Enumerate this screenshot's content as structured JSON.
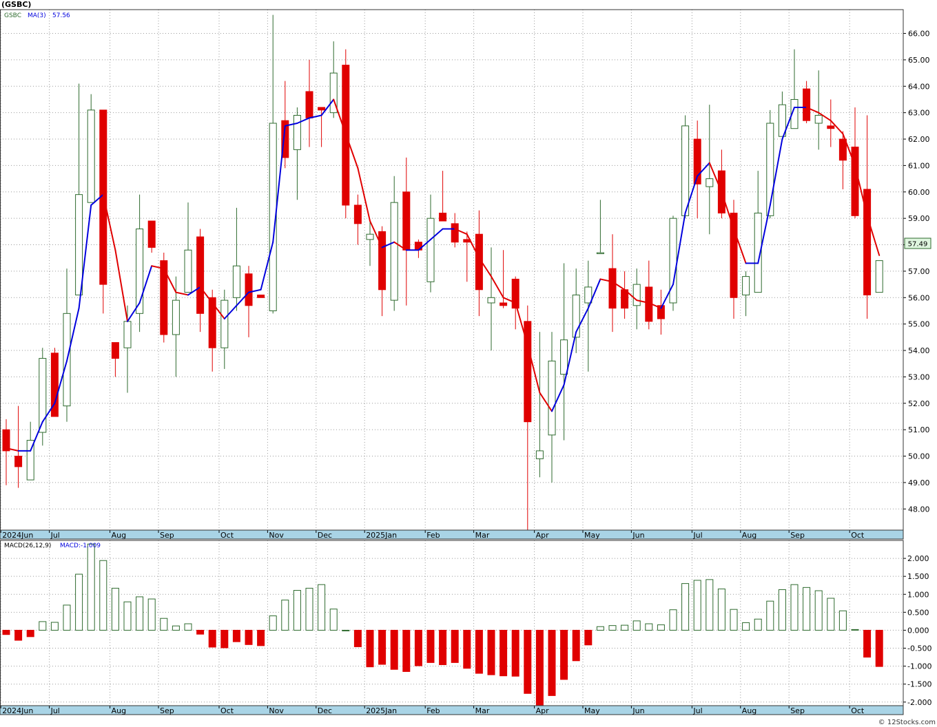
{
  "title": "(GSBC)",
  "credit": "© 12Stocks.com",
  "colors": {
    "up": "#2d6a2d",
    "down": "#e00000",
    "ma_up": "#0000dd",
    "ma_down": "#e00000",
    "grid": "#999999",
    "axis_band": "#a9d4e6",
    "label_box": "#dff5df"
  },
  "price_panel": {
    "legend": {
      "symbol": "GSBC",
      "ma_label": "MA(3)",
      "ma_value": "57.56"
    },
    "last_price": "57.49",
    "y_ticks": [
      "48.00",
      "49.00",
      "50.00",
      "51.00",
      "52.00",
      "53.00",
      "54.00",
      "55.00",
      "56.00",
      "57.00",
      "58.00",
      "59.00",
      "60.00",
      "61.00",
      "62.00",
      "63.00",
      "64.00",
      "65.00",
      "66.00"
    ]
  },
  "macd_panel": {
    "legend": {
      "label": "MACD(26,12,9)",
      "value_label": "MACD:-1.009"
    },
    "y_ticks": [
      "-2.000",
      "-1.500",
      "-1.000",
      "-0.500",
      "0.000",
      "0.500",
      "1.000",
      "1.500",
      "2.000"
    ]
  },
  "month_labels": [
    {
      "label": "2024Jun",
      "index": 0
    },
    {
      "label": "Jul",
      "index": 4
    },
    {
      "label": "Aug",
      "index": 9
    },
    {
      "label": "Sep",
      "index": 13
    },
    {
      "label": "Oct",
      "index": 18
    },
    {
      "label": "Nov",
      "index": 22
    },
    {
      "label": "Dec",
      "index": 26
    },
    {
      "label": "2025Jan",
      "index": 30
    },
    {
      "label": "Feb",
      "index": 35
    },
    {
      "label": "Mar",
      "index": 39
    },
    {
      "label": "Apr",
      "index": 44
    },
    {
      "label": "May",
      "index": 48
    },
    {
      "label": "Jun",
      "index": 52
    },
    {
      "label": "Jul",
      "index": 57
    },
    {
      "label": "Aug",
      "index": 61
    },
    {
      "label": "Sep",
      "index": 65
    },
    {
      "label": "Oct",
      "index": 70
    }
  ],
  "chart_data": {
    "type": "candlestick",
    "interval": "weekly",
    "y_range": [
      47.2,
      66.9
    ],
    "macd_range": [
      -2.1,
      2.5
    ],
    "candles": [
      {
        "o": 51.0,
        "h": 51.4,
        "l": 48.9,
        "c": 50.2
      },
      {
        "o": 50.0,
        "h": 51.9,
        "l": 48.8,
        "c": 49.6
      },
      {
        "o": 49.1,
        "h": 51.3,
        "l": 49.1,
        "c": 50.6
      },
      {
        "o": 50.9,
        "h": 54.1,
        "l": 50.4,
        "c": 53.7
      },
      {
        "o": 53.9,
        "h": 54.1,
        "l": 51.5,
        "c": 51.5
      },
      {
        "o": 51.9,
        "h": 57.1,
        "l": 51.3,
        "c": 55.4
      },
      {
        "o": 56.1,
        "h": 64.1,
        "l": 56.1,
        "c": 59.9
      },
      {
        "o": 59.6,
        "h": 63.7,
        "l": 59.6,
        "c": 63.1
      },
      {
        "o": 63.1,
        "h": 63.1,
        "l": 55.4,
        "c": 56.5
      },
      {
        "o": 54.3,
        "h": 54.3,
        "l": 53.0,
        "c": 53.7
      },
      {
        "o": 54.1,
        "h": 55.7,
        "l": 52.4,
        "c": 55.1
      },
      {
        "o": 55.4,
        "h": 59.9,
        "l": 54.7,
        "c": 58.6
      },
      {
        "o": 58.9,
        "h": 58.9,
        "l": 57.7,
        "c": 57.9
      },
      {
        "o": 57.4,
        "h": 57.7,
        "l": 54.3,
        "c": 54.6
      },
      {
        "o": 54.6,
        "h": 56.8,
        "l": 53.0,
        "c": 55.9
      },
      {
        "o": 56.2,
        "h": 59.6,
        "l": 56.2,
        "c": 57.8
      },
      {
        "o": 58.3,
        "h": 58.6,
        "l": 54.7,
        "c": 55.4
      },
      {
        "o": 56.0,
        "h": 56.3,
        "l": 53.2,
        "c": 54.1
      },
      {
        "o": 54.1,
        "h": 56.3,
        "l": 53.3,
        "c": 55.9
      },
      {
        "o": 56.0,
        "h": 59.4,
        "l": 55.5,
        "c": 57.2
      },
      {
        "o": 56.9,
        "h": 57.2,
        "l": 54.5,
        "c": 55.7
      },
      {
        "o": 56.1,
        "h": 56.1,
        "l": 56.0,
        "c": 56.0
      },
      {
        "o": 55.5,
        "h": 66.7,
        "l": 55.4,
        "c": 62.6
      },
      {
        "o": 62.7,
        "h": 64.2,
        "l": 60.9,
        "c": 61.3
      },
      {
        "o": 61.6,
        "h": 63.2,
        "l": 59.7,
        "c": 62.9
      },
      {
        "o": 63.8,
        "h": 65.0,
        "l": 61.7,
        "c": 62.8
      },
      {
        "o": 63.2,
        "h": 63.2,
        "l": 61.7,
        "c": 63.1
      },
      {
        "o": 63.0,
        "h": 65.7,
        "l": 62.8,
        "c": 64.5
      },
      {
        "o": 64.8,
        "h": 65.4,
        "l": 59.0,
        "c": 59.5
      },
      {
        "o": 59.5,
        "h": 59.9,
        "l": 58.0,
        "c": 58.8
      },
      {
        "o": 58.2,
        "h": 58.9,
        "l": 57.2,
        "c": 58.4
      },
      {
        "o": 58.5,
        "h": 58.7,
        "l": 55.3,
        "c": 56.3
      },
      {
        "o": 55.9,
        "h": 60.6,
        "l": 55.5,
        "c": 59.6
      },
      {
        "o": 60.0,
        "h": 61.3,
        "l": 55.7,
        "c": 57.8
      },
      {
        "o": 58.1,
        "h": 58.2,
        "l": 57.5,
        "c": 57.8
      },
      {
        "o": 56.6,
        "h": 59.9,
        "l": 56.2,
        "c": 59.0
      },
      {
        "o": 59.2,
        "h": 60.8,
        "l": 58.9,
        "c": 58.9
      },
      {
        "o": 58.8,
        "h": 59.2,
        "l": 57.9,
        "c": 58.1
      },
      {
        "o": 58.2,
        "h": 58.5,
        "l": 56.6,
        "c": 58.1
      },
      {
        "o": 58.4,
        "h": 59.3,
        "l": 55.3,
        "c": 56.3
      },
      {
        "o": 55.8,
        "h": 57.9,
        "l": 54.0,
        "c": 56.0
      },
      {
        "o": 55.8,
        "h": 57.8,
        "l": 55.6,
        "c": 55.7
      },
      {
        "o": 56.7,
        "h": 56.8,
        "l": 54.8,
        "c": 55.6
      },
      {
        "o": 55.1,
        "h": 55.7,
        "l": 47.2,
        "c": 51.3
      },
      {
        "o": 49.9,
        "h": 54.7,
        "l": 49.2,
        "c": 50.2
      },
      {
        "o": 50.8,
        "h": 54.7,
        "l": 49.0,
        "c": 53.6
      },
      {
        "o": 53.1,
        "h": 57.3,
        "l": 50.6,
        "c": 54.4
      },
      {
        "o": 54.5,
        "h": 57.1,
        "l": 53.9,
        "c": 56.1
      },
      {
        "o": 55.8,
        "h": 57.4,
        "l": 53.2,
        "c": 56.4
      },
      {
        "o": 57.7,
        "h": 59.7,
        "l": 57.7,
        "c": 57.7
      },
      {
        "o": 57.1,
        "h": 58.4,
        "l": 54.7,
        "c": 55.6
      },
      {
        "o": 56.3,
        "h": 57.0,
        "l": 55.2,
        "c": 55.6
      },
      {
        "o": 55.7,
        "h": 57.1,
        "l": 54.8,
        "c": 56.5
      },
      {
        "o": 56.4,
        "h": 57.4,
        "l": 54.8,
        "c": 55.1
      },
      {
        "o": 55.7,
        "h": 56.3,
        "l": 54.6,
        "c": 55.2
      },
      {
        "o": 55.8,
        "h": 59.1,
        "l": 55.5,
        "c": 59.0
      },
      {
        "o": 59.1,
        "h": 62.9,
        "l": 59.0,
        "c": 62.5
      },
      {
        "o": 62.0,
        "h": 62.7,
        "l": 59.0,
        "c": 60.3
      },
      {
        "o": 60.2,
        "h": 63.3,
        "l": 58.4,
        "c": 60.5
      },
      {
        "o": 60.8,
        "h": 61.6,
        "l": 59.0,
        "c": 59.2
      },
      {
        "o": 59.2,
        "h": 59.7,
        "l": 55.2,
        "c": 56.0
      },
      {
        "o": 56.1,
        "h": 57.0,
        "l": 55.3,
        "c": 56.8
      },
      {
        "o": 56.2,
        "h": 60.8,
        "l": 56.2,
        "c": 59.2
      },
      {
        "o": 59.1,
        "h": 63.1,
        "l": 59.0,
        "c": 62.6
      },
      {
        "o": 62.1,
        "h": 63.8,
        "l": 62.1,
        "c": 63.3
      },
      {
        "o": 62.4,
        "h": 65.4,
        "l": 62.4,
        "c": 63.5
      },
      {
        "o": 63.9,
        "h": 64.2,
        "l": 62.6,
        "c": 62.7
      },
      {
        "o": 62.6,
        "h": 64.6,
        "l": 61.6,
        "c": 62.9
      },
      {
        "o": 62.5,
        "h": 63.5,
        "l": 61.7,
        "c": 62.4
      },
      {
        "o": 62.0,
        "h": 62.3,
        "l": 60.1,
        "c": 61.2
      },
      {
        "o": 61.7,
        "h": 63.2,
        "l": 59.0,
        "c": 59.1
      },
      {
        "o": 60.1,
        "h": 62.9,
        "l": 55.2,
        "c": 56.1
      },
      {
        "o": 56.2,
        "h": 57.4,
        "l": 56.2,
        "c": 57.4
      }
    ],
    "ma3": [
      50.3,
      50.2,
      50.2,
      51.3,
      52.0,
      53.6,
      55.6,
      59.5,
      59.9,
      57.8,
      55.1,
      55.8,
      57.2,
      57.1,
      56.2,
      56.1,
      56.4,
      55.8,
      55.2,
      55.7,
      56.2,
      56.3,
      58.1,
      62.5,
      62.6,
      62.8,
      62.9,
      63.5,
      62.2,
      60.9,
      58.9,
      57.9,
      58.1,
      57.8,
      57.8,
      58.2,
      58.6,
      58.6,
      58.4,
      57.5,
      56.8,
      56.0,
      55.8,
      54.2,
      52.4,
      51.7,
      52.7,
      54.7,
      55.6,
      56.7,
      56.6,
      56.3,
      55.9,
      55.8,
      55.6,
      56.5,
      59.2,
      60.6,
      61.1,
      60.0,
      58.6,
      57.3,
      57.3,
      59.5,
      62.0,
      63.2,
      63.2,
      63.0,
      62.7,
      62.2,
      61.0,
      59.1,
      57.6
    ],
    "macd": [
      -0.12,
      -0.28,
      -0.18,
      0.24,
      0.22,
      0.7,
      1.56,
      2.4,
      1.94,
      1.17,
      0.79,
      0.93,
      0.87,
      0.33,
      0.12,
      0.18,
      -0.11,
      -0.47,
      -0.49,
      -0.32,
      -0.4,
      -0.43,
      0.4,
      0.84,
      1.11,
      1.17,
      1.27,
      0.59,
      0.0,
      -0.46,
      -1.02,
      -0.95,
      -1.09,
      -1.15,
      -0.99,
      -0.9,
      -0.96,
      -0.9,
      -1.06,
      -1.2,
      -1.24,
      -1.27,
      -1.28,
      -1.76,
      -2.08,
      -1.82,
      -1.37,
      -0.85,
      -0.41,
      0.1,
      0.13,
      0.14,
      0.26,
      0.18,
      0.15,
      0.57,
      1.3,
      1.39,
      1.41,
      1.15,
      0.58,
      0.21,
      0.31,
      0.81,
      1.13,
      1.27,
      1.19,
      1.1,
      0.89,
      0.54,
      0.02,
      -0.75,
      -1.01
    ]
  }
}
